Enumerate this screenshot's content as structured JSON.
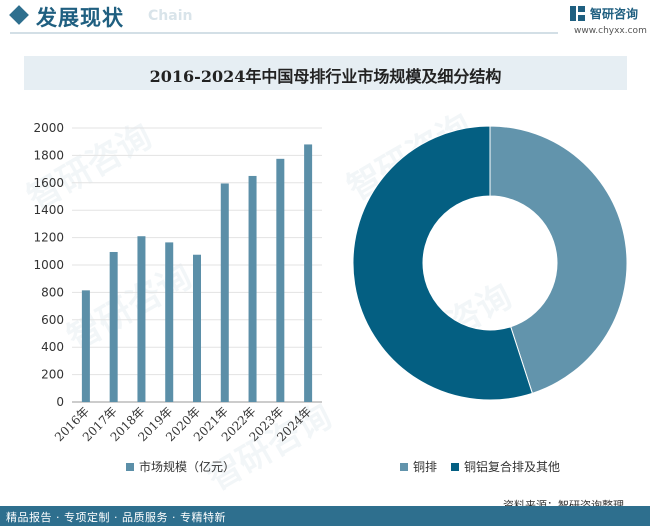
{
  "header": {
    "title": "发展现状",
    "subtitle_en": "Chain",
    "logo_name": "智研咨询",
    "logo_url": "www.chyxx.com"
  },
  "watermark": "智研咨询",
  "chart_data": [
    {
      "type": "bar",
      "title": "2016-2024年中国母排行业市场规模及细分结构",
      "categories": [
        "2016年",
        "2017年",
        "2018年",
        "2019年",
        "2020年",
        "2021年",
        "2022年",
        "2023年",
        "2024年"
      ],
      "series": [
        {
          "name": "市场规模（亿元）",
          "values": [
            815,
            1095,
            1210,
            1165,
            1075,
            1595,
            1650,
            1775,
            1880
          ]
        }
      ],
      "yticks": [
        0,
        200,
        400,
        600,
        800,
        1000,
        1200,
        1400,
        1600,
        1800,
        2000
      ],
      "ylim": [
        0,
        2000
      ],
      "grid": true,
      "color": "#5b8fa8"
    },
    {
      "type": "pie",
      "labels": [
        "铜排",
        "铜铝复合排及其他"
      ],
      "values": [
        45,
        55
      ],
      "colors": [
        "#6294ac",
        "#045f82"
      ],
      "donut": true
    }
  ],
  "source": "资料来源：智研咨询整理",
  "footer": "精品报告 · 专项定制 · 品质服务 · 专精特新"
}
